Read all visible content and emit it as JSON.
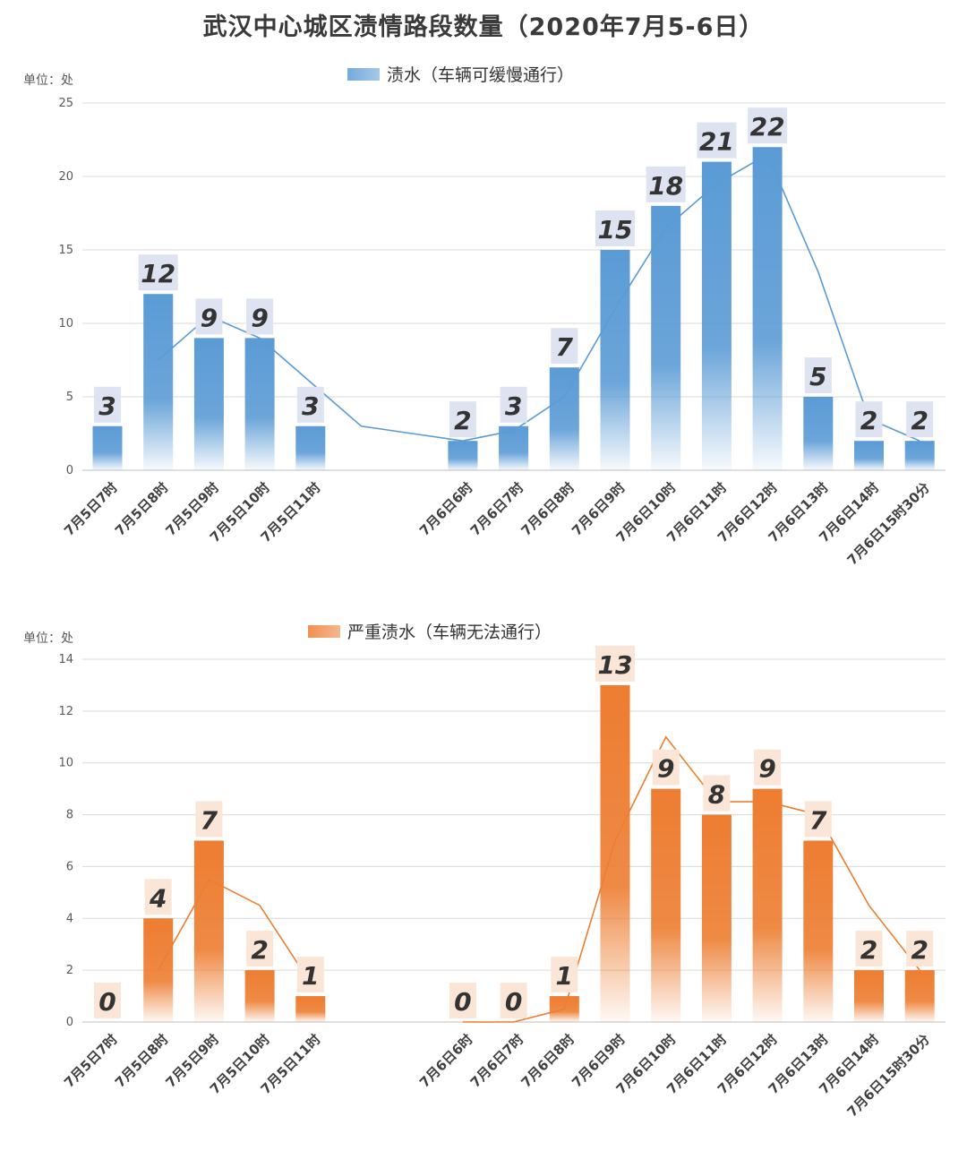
{
  "page": {
    "title": "武汉中心城区渍情路段数量（2020年7月5-6日）"
  },
  "chart_data": [
    {
      "type": "bar",
      "legend": "渍水（车辆可缓慢通行）",
      "unit_label": "单位：处",
      "categories": [
        "7月5日7时",
        "7月5日8时",
        "7月5日9时",
        "7月5日10时",
        "7月5日11时",
        "",
        "",
        "7月6日6时",
        "7月6日7时",
        "7月6日8时",
        "7月6日9时",
        "7月6日10时",
        "7月6日11时",
        "7月6日12时",
        "7月6日13时",
        "7月6日14时",
        "7月6日15时30分"
      ],
      "values": [
        3,
        12,
        9,
        9,
        3,
        null,
        null,
        2,
        3,
        7,
        15,
        18,
        21,
        22,
        5,
        2,
        2
      ],
      "trend": [
        null,
        7.5,
        10.5,
        9,
        6,
        3,
        2.5,
        2,
        2.7,
        5,
        11,
        16.5,
        19.5,
        21.5,
        13.5,
        3.5,
        2
      ],
      "ylim": [
        0,
        25
      ],
      "yticks": [
        0,
        5,
        10,
        15,
        20,
        25
      ],
      "color": "#5b9bd5",
      "label_bg": "#dde3f0",
      "legend_position": "top-center",
      "grid": true
    },
    {
      "type": "bar",
      "legend": "严重渍水（车辆无法通行）",
      "unit_label": "单位：处",
      "categories": [
        "7月5日7时",
        "7月5日8时",
        "7月5日9时",
        "7月5日10时",
        "7月5日11时",
        "",
        "",
        "7月6日6时",
        "7月6日7时",
        "7月6日8时",
        "7月6日9时",
        "7月6日10时",
        "7月6日11时",
        "7月6日12时",
        "7月6日13时",
        "7月6日14时",
        "7月6日15时30分"
      ],
      "values": [
        0,
        4,
        7,
        2,
        1,
        null,
        null,
        0,
        0,
        1,
        13,
        9,
        8,
        9,
        7,
        2,
        2
      ],
      "trend": [
        null,
        2,
        5.5,
        4.5,
        1.5,
        null,
        null,
        0,
        0,
        0.5,
        7,
        11,
        8.5,
        8.5,
        8,
        4.5,
        2
      ],
      "ylim": [
        0,
        14
      ],
      "yticks": [
        0,
        2,
        4,
        6,
        8,
        10,
        12,
        14
      ],
      "color": "#ed7d31",
      "label_bg": "#fbe5d6",
      "legend_position": "top-center",
      "grid": true
    }
  ]
}
